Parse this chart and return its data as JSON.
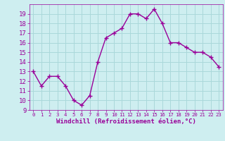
{
  "x": [
    0,
    1,
    2,
    3,
    4,
    5,
    6,
    7,
    8,
    9,
    10,
    11,
    12,
    13,
    14,
    15,
    16,
    17,
    18,
    19,
    20,
    21,
    22,
    23
  ],
  "y": [
    13,
    11.5,
    12.5,
    12.5,
    11.5,
    10,
    9.5,
    10.5,
    14,
    16.5,
    17,
    17.5,
    19,
    19,
    18.5,
    19.5,
    18,
    16,
    16,
    15.5,
    15,
    15,
    14.5,
    13.5
  ],
  "line_color": "#990099",
  "marker": "+",
  "markersize": 4,
  "linewidth": 1,
  "background_color": "#ceeef0",
  "grid_color": "#aad8da",
  "xlabel": "Windchill (Refroidissement éolien,°C)",
  "xlabel_color": "#990099",
  "xlabel_fontsize": 6.5,
  "tick_color": "#990099",
  "ytick_fontsize": 6.5,
  "xtick_fontsize": 5.2,
  "ylim": [
    9,
    20
  ],
  "xlim": [
    -0.5,
    23.5
  ],
  "yticks": [
    9,
    10,
    11,
    12,
    13,
    14,
    15,
    16,
    17,
    18,
    19
  ],
  "xticks": [
    0,
    1,
    2,
    3,
    4,
    5,
    6,
    7,
    8,
    9,
    10,
    11,
    12,
    13,
    14,
    15,
    16,
    17,
    18,
    19,
    20,
    21,
    22,
    23
  ]
}
